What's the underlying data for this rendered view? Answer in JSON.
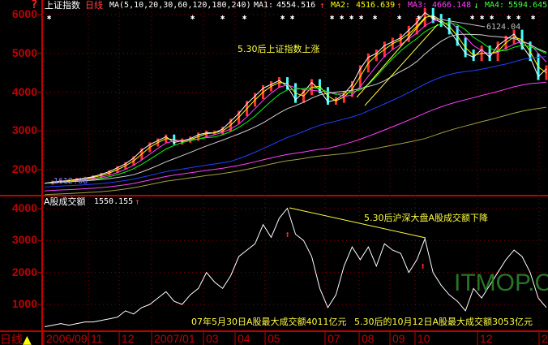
{
  "header": {
    "help_icon": "?",
    "title": "上证指数",
    "period": "日线",
    "ma_def": "MA(5,10,20,30,60,120,180,240)",
    "ma1_label": "MA1:",
    "ma1_value": "4554.516",
    "ma1_arrow": "↑",
    "ma2_label": "MA2:",
    "ma2_value": "4516.639",
    "ma2_arrow": "↑",
    "ma3_label": "MA3:",
    "ma3_value": "4666.148",
    "ma3_arrow": "↓",
    "ma4_label": "MA4:",
    "ma4_value": "5594.645"
  },
  "volume_header": {
    "title": "A股成交额",
    "value": "1550.155",
    "arrow": "↑"
  },
  "period_switch": {
    "label": "日线",
    "icon": "triangle-up-icon"
  },
  "annotations": {
    "index_note": "5.30后上证指数上涨",
    "volume_note": "5.30后沪深大盘A股成交额下降",
    "peak_note": "07年5月30日A股最大成交额4011亿元",
    "oct_note": "5.30后的10月12日A股最大成交额3053亿元",
    "high_label": "6124.04",
    "low_label": "1612.08"
  },
  "watermark": "ITMOP.COM",
  "colors": {
    "axis": "#c00000",
    "annotation": "#ffff40",
    "ma": [
      "#ffffff",
      "#ffff00",
      "#ff40ff",
      "#00ff00",
      "#d0d0d0",
      "#2040ff",
      "#ff40ff",
      "#a0a040"
    ]
  },
  "chart_data": [
    {
      "type": "line",
      "name": "上证指数",
      "ylim": [
        1400,
        6300
      ],
      "yticks": [
        2000,
        3000,
        4000,
        5000,
        6000
      ],
      "xticks": [
        "2006/09",
        "11",
        "12",
        "2007/01",
        "03",
        "04",
        "05",
        "07",
        "08",
        "09",
        "10",
        "12",
        "2"
      ],
      "ma_periods": [
        5,
        10,
        20,
        30,
        60,
        120,
        180,
        240
      ],
      "close": [
        1650,
        1680,
        1700,
        1720,
        1750,
        1780,
        1820,
        1880,
        1950,
        2050,
        2150,
        2300,
        2500,
        2650,
        2750,
        2850,
        2700,
        2750,
        2800,
        2900,
        2950,
        2950,
        3050,
        3250,
        3450,
        3700,
        3900,
        4100,
        4200,
        4300,
        4150,
        3800,
        4000,
        4250,
        4050,
        3750,
        3800,
        3950,
        4200,
        4600,
        4900,
        5000,
        5200,
        5300,
        5400,
        5600,
        5800,
        6050,
        5900,
        5800,
        5600,
        5300,
        5000,
        4900,
        5100,
        4900,
        5200,
        5350,
        5500,
        5200,
        4900,
        4400,
        4600
      ]
    },
    {
      "type": "line",
      "name": "A股成交额",
      "ylim": [
        0,
        4300
      ],
      "yticks": [
        1000,
        2000,
        3000,
        4000
      ],
      "values": [
        300,
        350,
        400,
        350,
        400,
        450,
        450,
        500,
        550,
        600,
        800,
        700,
        900,
        1000,
        1200,
        1400,
        1100,
        1000,
        1300,
        1500,
        2000,
        1700,
        1500,
        1900,
        2500,
        2700,
        2900,
        3500,
        3100,
        3700,
        4011,
        3200,
        3000,
        2500,
        1500,
        900,
        1300,
        2200,
        2800,
        2400,
        2800,
        2200,
        2900,
        2700,
        2600,
        2000,
        2400,
        3053,
        2000,
        1600,
        1300,
        1100,
        800,
        1500,
        1200,
        1600,
        2000,
        2400,
        2700,
        2500,
        2000,
        1200,
        900
      ]
    }
  ]
}
